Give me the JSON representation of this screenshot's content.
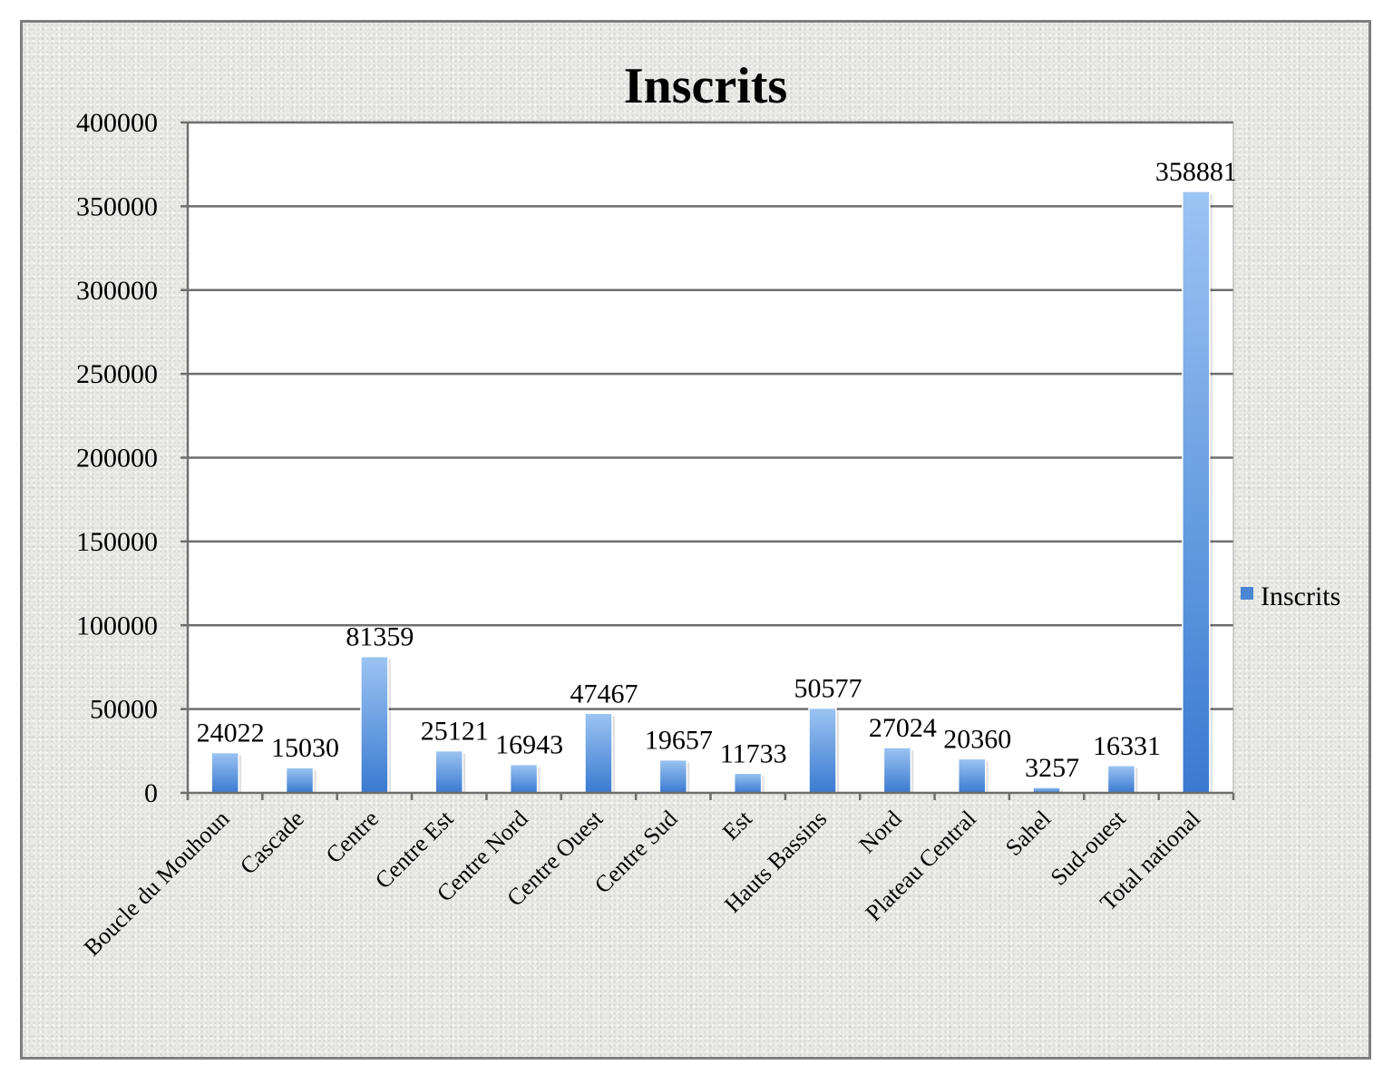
{
  "chart_data": {
    "type": "bar",
    "title": "Inscrits",
    "xlabel": "",
    "ylabel": "",
    "categories": [
      "Boucle du Mouhoun",
      "Cascade",
      "Centre",
      "Centre Est",
      "Centre Nord",
      "Centre Ouest",
      "Centre Sud",
      "Est",
      "Hauts Bassins",
      "Nord",
      "Plateau Central",
      "Sahel",
      "Sud-ouest",
      "Total national"
    ],
    "series": [
      {
        "name": "Inscrits",
        "values": [
          24022,
          15030,
          81359,
          25121,
          16943,
          47467,
          19657,
          11733,
          50577,
          27024,
          20360,
          3257,
          16331,
          358881
        ],
        "color": "#4a86d4"
      }
    ],
    "data_labels": [
      "24022",
      "15030",
      "81359",
      "25121",
      "16943",
      "47467",
      "19657",
      "11733",
      "50577",
      "27024",
      "20360",
      "3257",
      "16331",
      "358881"
    ],
    "ylim": [
      0,
      400000
    ],
    "yticks": [
      "0",
      "50000",
      "100000",
      "150000",
      "200000",
      "250000",
      "300000",
      "350000",
      "400000"
    ],
    "grid": true,
    "legend_position": "right"
  }
}
